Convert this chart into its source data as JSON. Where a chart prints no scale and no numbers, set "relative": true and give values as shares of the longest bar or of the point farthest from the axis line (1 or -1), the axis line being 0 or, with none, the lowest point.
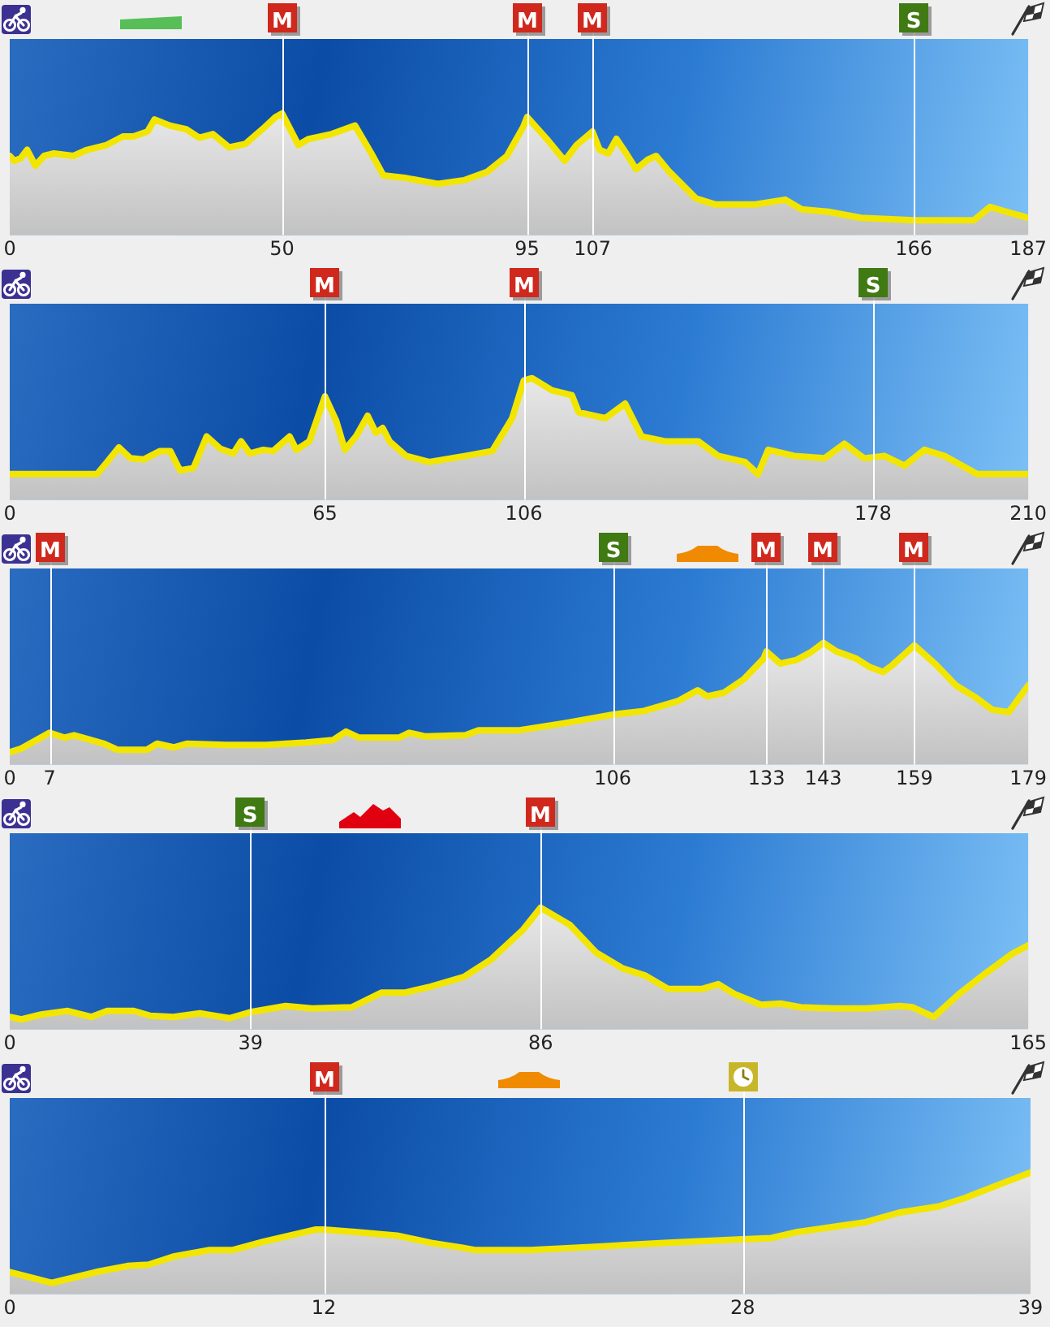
{
  "chart_data": [
    {
      "type": "area",
      "relative": true,
      "color": "#f2e500",
      "xlim": [
        0,
        187
      ],
      "xticks": [
        0,
        50,
        95,
        107,
        166,
        187
      ],
      "x": [
        0,
        0.8,
        2,
        3.2,
        4.7,
        6.3,
        8.1,
        11.7,
        14.2,
        17.8,
        20.8,
        22.7,
        25.3,
        26.6,
        29.4,
        32.4,
        34.8,
        37.3,
        40.3,
        43.3,
        46.4,
        48.8,
        50,
        53,
        54.9,
        59.1,
        63.4,
        66.4,
        68.6,
        72.5,
        78.6,
        83.4,
        87.7,
        91.3,
        94.3,
        95,
        98.6,
        101.9,
        104.1,
        107,
        108.3,
        109.9,
        111.4,
        113.2,
        115,
        117.2,
        118.7,
        121.1,
        126,
        129.6,
        136.9,
        142.4,
        145.4,
        150.3,
        156.3,
        166,
        177,
        180,
        183,
        187
      ],
      "values": [
        0.65,
        0.61,
        0.63,
        0.7,
        0.57,
        0.65,
        0.67,
        0.65,
        0.7,
        0.74,
        0.81,
        0.81,
        0.85,
        0.95,
        0.9,
        0.87,
        0.8,
        0.83,
        0.72,
        0.75,
        0.87,
        0.97,
        1,
        0.74,
        0.79,
        0.83,
        0.9,
        0.67,
        0.49,
        0.47,
        0.42,
        0.45,
        0.52,
        0.65,
        0.89,
        0.97,
        0.79,
        0.61,
        0.74,
        0.85,
        0.7,
        0.67,
        0.79,
        0.67,
        0.54,
        0.62,
        0.65,
        0.52,
        0.3,
        0.25,
        0.25,
        0.29,
        0.21,
        0.19,
        0.14,
        0.12,
        0.12,
        0.23,
        0.19,
        0.14
      ],
      "ref_lines": [
        {
          "axis": "x",
          "value": 50,
          "label": "M",
          "color": "#ffffff"
        },
        {
          "axis": "x",
          "value": 95,
          "label": "M",
          "color": "#ffffff"
        },
        {
          "axis": "x",
          "value": 107,
          "label": "M",
          "color": "#ffffff"
        },
        {
          "axis": "x",
          "value": 166,
          "label": "S",
          "color": "#ffffff"
        }
      ]
    },
    {
      "type": "area",
      "relative": true,
      "color": "#f2e500",
      "xlim": [
        0,
        210
      ],
      "xticks": [
        0,
        65,
        106,
        178,
        210
      ],
      "x": [
        0,
        6.4,
        18,
        20.1,
        22.5,
        24.9,
        27.6,
        31,
        33.1,
        35.1,
        37.9,
        40.6,
        43.4,
        46.1,
        47.7,
        49.5,
        52.3,
        54.3,
        57.7,
        59.1,
        61.8,
        65,
        67.3,
        69.1,
        71.4,
        73.8,
        75.5,
        76.9,
        78.3,
        81.7,
        86.5,
        94,
        99.5,
        103.6,
        106,
        107.7,
        111.8,
        115.9,
        117.3,
        122.8,
        126.9,
        130.3,
        135.1,
        142,
        146.1,
        151.6,
        154.3,
        156.4,
        161.8,
        168,
        172.1,
        176.2,
        180.3,
        184.5,
        188.6,
        192.7,
        199.5,
        210
      ],
      "values": [
        0.21,
        0.21,
        0.21,
        0.31,
        0.43,
        0.34,
        0.33,
        0.4,
        0.4,
        0.24,
        0.26,
        0.52,
        0.42,
        0.38,
        0.48,
        0.38,
        0.41,
        0.4,
        0.52,
        0.41,
        0.48,
        0.85,
        0.65,
        0.41,
        0.52,
        0.69,
        0.55,
        0.59,
        0.48,
        0.36,
        0.31,
        0.36,
        0.4,
        0.67,
        0.98,
        1,
        0.9,
        0.86,
        0.72,
        0.67,
        0.79,
        0.52,
        0.48,
        0.48,
        0.36,
        0.31,
        0.21,
        0.41,
        0.36,
        0.34,
        0.46,
        0.34,
        0.36,
        0.28,
        0.41,
        0.36,
        0.21,
        0.21
      ],
      "ref_lines": [
        {
          "axis": "x",
          "value": 65,
          "label": "M",
          "color": "#ffffff"
        },
        {
          "axis": "x",
          "value": 106,
          "label": "M",
          "color": "#ffffff"
        },
        {
          "axis": "x",
          "value": 178,
          "label": "S",
          "color": "#ffffff"
        }
      ]
    },
    {
      "type": "area",
      "relative": true,
      "color": "#f2e500",
      "xlim": [
        0,
        179
      ],
      "xticks": [
        0,
        7,
        106,
        133,
        143,
        159,
        179
      ],
      "x": [
        0,
        2,
        4.3,
        7,
        9.6,
        11.3,
        13.6,
        16.6,
        18.9,
        21.8,
        24.1,
        25.9,
        28.8,
        31.1,
        38.1,
        45.1,
        52.1,
        56.8,
        59.1,
        61.4,
        68.4,
        70.2,
        73.1,
        80.1,
        82.4,
        89.4,
        97.6,
        106,
        111.5,
        117.4,
        120.9,
        122.6,
        125.5,
        129,
        132.5,
        133,
        135.4,
        138.3,
        140.7,
        143,
        145.3,
        148.8,
        151.2,
        153.5,
        155.2,
        159,
        162.8,
        166.3,
        169.8,
        172.7,
        175.6,
        179
      ],
      "values": [
        0.1,
        0.13,
        0.19,
        0.26,
        0.22,
        0.24,
        0.21,
        0.17,
        0.12,
        0.12,
        0.12,
        0.17,
        0.14,
        0.17,
        0.16,
        0.16,
        0.18,
        0.2,
        0.27,
        0.22,
        0.22,
        0.26,
        0.23,
        0.24,
        0.28,
        0.28,
        0.34,
        0.41,
        0.44,
        0.52,
        0.61,
        0.56,
        0.59,
        0.7,
        0.87,
        0.93,
        0.83,
        0.86,
        0.92,
        1,
        0.93,
        0.87,
        0.8,
        0.76,
        0.82,
        0.98,
        0.82,
        0.65,
        0.55,
        0.45,
        0.43,
        0.65
      ],
      "ref_lines": [
        {
          "axis": "x",
          "value": 7,
          "label": "M",
          "color": "#ffffff"
        },
        {
          "axis": "x",
          "value": 106,
          "label": "S",
          "color": "#ffffff"
        },
        {
          "axis": "x",
          "value": 133,
          "label": "M",
          "color": "#ffffff"
        },
        {
          "axis": "x",
          "value": 143,
          "label": "M",
          "color": "#ffffff"
        },
        {
          "axis": "x",
          "value": 159,
          "label": "M",
          "color": "#ffffff"
        }
      ]
    },
    {
      "type": "area",
      "relative": true,
      "color": "#f2e500",
      "xlim": [
        0,
        165
      ],
      "xticks": [
        0,
        39,
        86,
        165
      ],
      "x": [
        0,
        1.9,
        5.1,
        9.4,
        13.2,
        15.8,
        20.1,
        22.8,
        26.5,
        30.8,
        35.6,
        39,
        44.7,
        49,
        55.4,
        60.2,
        64,
        68.2,
        73.6,
        77.9,
        83.2,
        86,
        90.7,
        95,
        99.3,
        103,
        106.7,
        112.1,
        114.8,
        117.4,
        121.7,
        124.9,
        128.1,
        133.5,
        138.8,
        144.2,
        146.3,
        149.7,
        153.8,
        158.1,
        162.4,
        165
      ],
      "values": [
        0.1,
        0.08,
        0.12,
        0.15,
        0.1,
        0.15,
        0.15,
        0.11,
        0.1,
        0.13,
        0.09,
        0.14,
        0.19,
        0.17,
        0.18,
        0.3,
        0.3,
        0.35,
        0.43,
        0.57,
        0.82,
        1,
        0.86,
        0.63,
        0.5,
        0.44,
        0.33,
        0.33,
        0.37,
        0.29,
        0.2,
        0.21,
        0.18,
        0.17,
        0.17,
        0.19,
        0.18,
        0.1,
        0.29,
        0.46,
        0.62,
        0.69
      ],
      "ref_lines": [
        {
          "axis": "x",
          "value": 39,
          "label": "S",
          "color": "#ffffff"
        },
        {
          "axis": "x",
          "value": 86,
          "label": "M",
          "color": "#ffffff"
        }
      ]
    },
    {
      "type": "area",
      "relative": true,
      "color": "#f2e500",
      "xlim": [
        0,
        39
      ],
      "xticks": [
        0,
        12,
        28,
        39
      ],
      "x": [
        0,
        1.6,
        3.3,
        4.5,
        5.3,
        6.3,
        7.6,
        8.5,
        9.7,
        10.7,
        11.7,
        12,
        13.2,
        14.8,
        16.1,
        17.3,
        17.8,
        19.9,
        22.5,
        25,
        28,
        29.1,
        30.1,
        31.4,
        32.7,
        34,
        35.5,
        36.5,
        37.8,
        39
      ],
      "values": [
        0.18,
        0.09,
        0.18,
        0.23,
        0.24,
        0.31,
        0.36,
        0.36,
        0.43,
        0.48,
        0.53,
        0.53,
        0.51,
        0.48,
        0.42,
        0.38,
        0.36,
        0.36,
        0.39,
        0.42,
        0.45,
        0.46,
        0.51,
        0.55,
        0.59,
        0.67,
        0.72,
        0.79,
        0.9,
        1
      ],
      "ref_lines": [
        {
          "axis": "x",
          "value": 12,
          "label": "M",
          "color": "#ffffff"
        },
        {
          "axis": "x",
          "value": 28,
          "color": "#ffffff"
        }
      ]
    }
  ]
}
